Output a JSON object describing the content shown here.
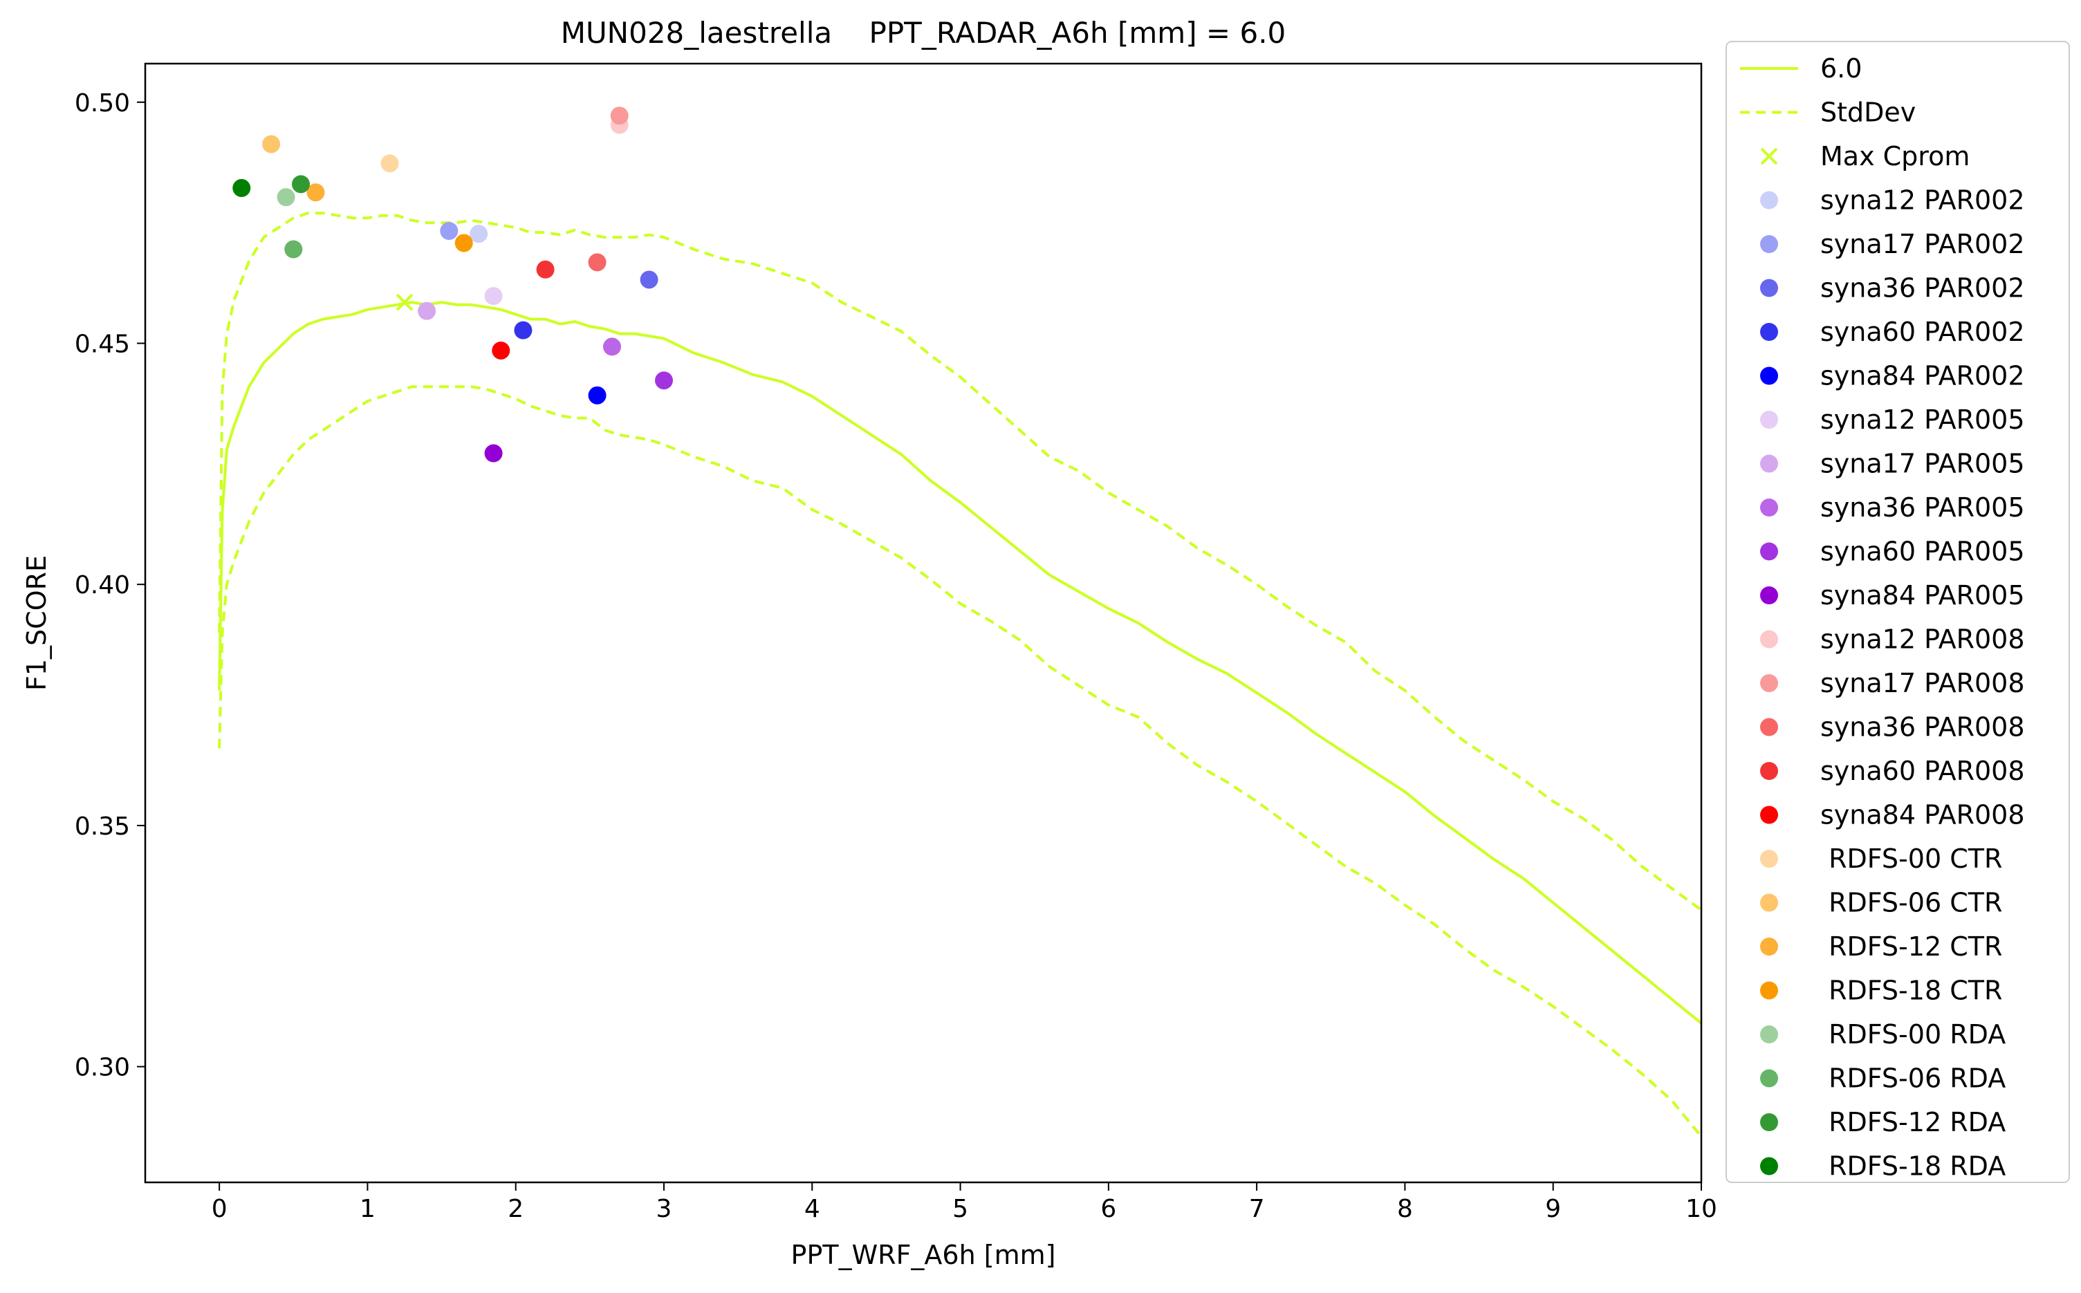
{
  "chart_data": {
    "type": "line",
    "title": "MUN028_laestrella    PPT_RADAR_A6h [mm] = 6.0",
    "xlabel": "PPT_WRF_A6h [mm]",
    "ylabel": "F1_SCORE",
    "xlim": [
      -0.5,
      10
    ],
    "ylim": [
      0.276,
      0.508
    ],
    "xticks": [
      "0",
      "1",
      "2",
      "3",
      "4",
      "5",
      "6",
      "7",
      "8",
      "9",
      "10"
    ],
    "yticks": [
      "0.30",
      "0.35",
      "0.40",
      "0.45",
      "0.50"
    ],
    "grid": false,
    "legend_position": "outside-right",
    "line_color": "#ccff22",
    "series": [
      {
        "name": "6.0",
        "style": "solid",
        "x": [
          0,
          0.02,
          0.05,
          0.1,
          0.15,
          0.2,
          0.3,
          0.4,
          0.5,
          0.6,
          0.7,
          0.8,
          0.9,
          1.0,
          1.1,
          1.2,
          1.3,
          1.4,
          1.5,
          1.6,
          1.7,
          1.8,
          1.9,
          2.0,
          2.1,
          2.2,
          2.3,
          2.4,
          2.5,
          2.6,
          2.7,
          2.8,
          2.9,
          3.0,
          3.2,
          3.4,
          3.6,
          3.8,
          4.0,
          4.2,
          4.4,
          4.6,
          4.8,
          5.0,
          5.2,
          5.4,
          5.6,
          5.8,
          6.0,
          6.2,
          6.4,
          6.6,
          6.8,
          7.0,
          7.2,
          7.4,
          7.6,
          7.8,
          8.0,
          8.2,
          8.4,
          8.6,
          8.8,
          9.0,
          9.2,
          9.4,
          9.6,
          9.8,
          10.0
        ],
        "y": [
          0.378,
          0.415,
          0.428,
          0.433,
          0.437,
          0.441,
          0.446,
          0.449,
          0.452,
          0.454,
          0.455,
          0.4555,
          0.456,
          0.457,
          0.4575,
          0.458,
          0.4585,
          0.458,
          0.4585,
          0.458,
          0.458,
          0.4575,
          0.457,
          0.456,
          0.455,
          0.455,
          0.454,
          0.4545,
          0.4535,
          0.453,
          0.452,
          0.452,
          0.4515,
          0.451,
          0.448,
          0.446,
          0.4435,
          0.442,
          0.439,
          0.435,
          0.431,
          0.427,
          0.4215,
          0.417,
          0.412,
          0.407,
          0.402,
          0.3985,
          0.395,
          0.392,
          0.388,
          0.3845,
          0.3815,
          0.3775,
          0.3735,
          0.369,
          0.365,
          0.361,
          0.357,
          0.352,
          0.3475,
          0.343,
          0.339,
          0.334,
          0.329,
          0.324,
          0.319,
          0.314,
          0.309
        ]
      },
      {
        "name": "StdDev",
        "style": "dashed",
        "x": [
          0,
          0.02,
          0.05,
          0.1,
          0.15,
          0.2,
          0.3,
          0.4,
          0.5,
          0.6,
          0.7,
          0.8,
          0.9,
          1.0,
          1.1,
          1.2,
          1.3,
          1.4,
          1.5,
          1.6,
          1.7,
          1.8,
          1.9,
          2.0,
          2.1,
          2.2,
          2.3,
          2.4,
          2.5,
          2.6,
          2.7,
          2.8,
          2.9,
          3.0,
          3.2,
          3.4,
          3.6,
          3.8,
          4.0,
          4.2,
          4.4,
          4.6,
          4.8,
          5.0,
          5.2,
          5.4,
          5.6,
          5.8,
          6.0,
          6.2,
          6.4,
          6.6,
          6.8,
          7.0,
          7.2,
          7.4,
          7.6,
          7.8,
          8.0,
          8.2,
          8.4,
          8.6,
          8.8,
          9.0,
          9.2,
          9.4,
          9.6,
          9.8,
          10.0
        ],
        "y": [
          0.39,
          0.44,
          0.452,
          0.459,
          0.463,
          0.467,
          0.472,
          0.474,
          0.476,
          0.477,
          0.477,
          0.4765,
          0.476,
          0.476,
          0.4765,
          0.4765,
          0.4755,
          0.475,
          0.475,
          0.475,
          0.4755,
          0.475,
          0.4745,
          0.474,
          0.473,
          0.473,
          0.4725,
          0.4735,
          0.4725,
          0.472,
          0.472,
          0.472,
          0.4725,
          0.472,
          0.4695,
          0.4675,
          0.4665,
          0.4645,
          0.4625,
          0.4585,
          0.4555,
          0.4525,
          0.4475,
          0.443,
          0.4375,
          0.432,
          0.4265,
          0.4235,
          0.419,
          0.4155,
          0.412,
          0.4075,
          0.404,
          0.4,
          0.3955,
          0.3915,
          0.388,
          0.382,
          0.378,
          0.3725,
          0.3675,
          0.3635,
          0.3595,
          0.355,
          0.3515,
          0.347,
          0.3415,
          0.337,
          0.3325
        ]
      },
      {
        "name": "",
        "style": "dashed",
        "x": [
          0,
          0.02,
          0.05,
          0.1,
          0.15,
          0.2,
          0.3,
          0.4,
          0.5,
          0.6,
          0.7,
          0.8,
          0.9,
          1.0,
          1.1,
          1.2,
          1.3,
          1.4,
          1.5,
          1.6,
          1.7,
          1.8,
          1.9,
          2.0,
          2.1,
          2.2,
          2.3,
          2.4,
          2.5,
          2.6,
          2.7,
          2.8,
          2.9,
          3.0,
          3.2,
          3.4,
          3.6,
          3.8,
          4.0,
          4.2,
          4.4,
          4.6,
          4.8,
          5.0,
          5.2,
          5.4,
          5.6,
          5.8,
          6.0,
          6.2,
          6.4,
          6.6,
          6.8,
          7.0,
          7.2,
          7.4,
          7.6,
          7.8,
          8.0,
          8.2,
          8.4,
          8.6,
          8.8,
          9.0,
          9.2,
          9.4,
          9.6,
          9.8,
          10.0
        ],
        "y": [
          0.366,
          0.39,
          0.4,
          0.405,
          0.409,
          0.413,
          0.419,
          0.423,
          0.427,
          0.43,
          0.432,
          0.434,
          0.436,
          0.438,
          0.439,
          0.44,
          0.441,
          0.441,
          0.441,
          0.441,
          0.441,
          0.4405,
          0.4395,
          0.4385,
          0.437,
          0.436,
          0.435,
          0.4345,
          0.4345,
          0.432,
          0.431,
          0.4305,
          0.43,
          0.429,
          0.4265,
          0.4245,
          0.4215,
          0.42,
          0.4155,
          0.4125,
          0.409,
          0.4055,
          0.401,
          0.396,
          0.3925,
          0.3885,
          0.383,
          0.379,
          0.375,
          0.3725,
          0.367,
          0.3625,
          0.359,
          0.355,
          0.3505,
          0.346,
          0.3415,
          0.338,
          0.3335,
          0.3295,
          0.3245,
          0.32,
          0.3165,
          0.3125,
          0.308,
          0.3035,
          0.2985,
          0.293,
          0.2855
        ]
      }
    ],
    "max_marker": {
      "name": "Max Cprom",
      "x": 1.25,
      "y": 0.4585
    },
    "points": [
      {
        "name": "syna12 PAR002",
        "color": "#cbd0f8",
        "x": 1.75,
        "y": 0.4727
      },
      {
        "name": "syna17 PAR002",
        "color": "#9aa0f5",
        "x": 1.55,
        "y": 0.4733
      },
      {
        "name": "syna36 PAR002",
        "color": "#6666ef",
        "x": 2.9,
        "y": 0.4632
      },
      {
        "name": "syna60 PAR002",
        "color": "#3333ee",
        "x": 2.05,
        "y": 0.4527
      },
      {
        "name": "syna84 PAR002",
        "color": "#0000ff",
        "x": 2.55,
        "y": 0.4392
      },
      {
        "name": "syna12 PAR005",
        "color": "#e6cdf5",
        "x": 1.85,
        "y": 0.4598
      },
      {
        "name": "syna17 PAR005",
        "color": "#d5a8ee",
        "x": 1.4,
        "y": 0.4567
      },
      {
        "name": "syna36 PAR005",
        "color": "#bb66e6",
        "x": 2.65,
        "y": 0.4493
      },
      {
        "name": "syna60 PAR005",
        "color": "#a333e0",
        "x": 3.0,
        "y": 0.4423
      },
      {
        "name": "syna84 PAR005",
        "color": "#9400d3",
        "x": 1.85,
        "y": 0.4272
      },
      {
        "name": "syna12 PAR008",
        "color": "#fcc8c8",
        "x": 2.7,
        "y": 0.4953
      },
      {
        "name": "syna17 PAR008",
        "color": "#fa9999",
        "x": 2.7,
        "y": 0.4972
      },
      {
        "name": "syna36 PAR008",
        "color": "#f76666",
        "x": 2.55,
        "y": 0.4668
      },
      {
        "name": "syna60 PAR008",
        "color": "#f33333",
        "x": 2.2,
        "y": 0.4653
      },
      {
        "name": "syna84 PAR008",
        "color": "#ff0000",
        "x": 1.9,
        "y": 0.4485
      },
      {
        "name": " RDFS-00 CTR",
        "color": "#fed7a0",
        "x": 1.15,
        "y": 0.4873
      },
      {
        "name": " RDFS-06 CTR",
        "color": "#fdc66a",
        "x": 0.35,
        "y": 0.4913
      },
      {
        "name": " RDFS-12 CTR",
        "color": "#fcb035",
        "x": 0.65,
        "y": 0.4813
      },
      {
        "name": " RDFS-18 CTR",
        "color": "#fb9a00",
        "x": 1.65,
        "y": 0.4708
      },
      {
        "name": " RDFS-00 RDA",
        "color": "#9ed09e",
        "x": 0.45,
        "y": 0.4803
      },
      {
        "name": " RDFS-06 RDA",
        "color": "#66b566",
        "x": 0.5,
        "y": 0.4695
      },
      {
        "name": " RDFS-12 RDA",
        "color": "#339933",
        "x": 0.55,
        "y": 0.483
      },
      {
        "name": " RDFS-18 RDA",
        "color": "#008000",
        "x": 0.15,
        "y": 0.4822
      }
    ]
  }
}
